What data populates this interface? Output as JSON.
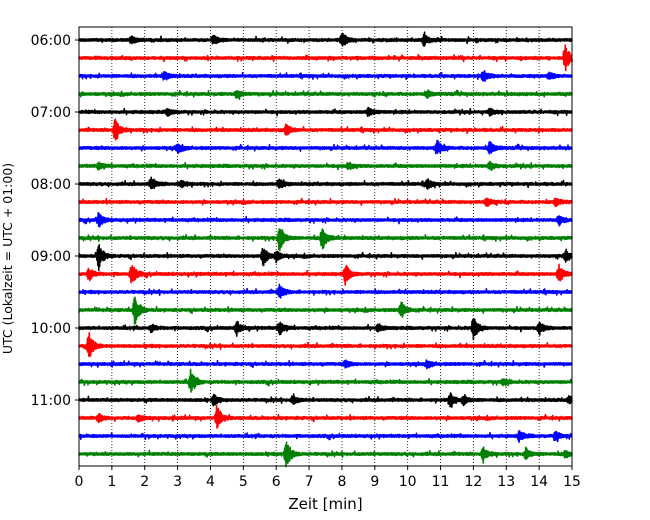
{
  "chart_data": {
    "type": "line",
    "xlabel": "Zeit  [min]",
    "ylabel": "UTC (Lokalzeit = UTC + 01:00)",
    "xlim": [
      0,
      15
    ],
    "x_ticks": [
      0,
      1,
      2,
      3,
      4,
      5,
      6,
      7,
      8,
      9,
      10,
      11,
      12,
      13,
      14,
      15
    ],
    "grid": "vertical dotted lines at each minute",
    "y_ticks": [
      {
        "label": "06:00",
        "row": 0
      },
      {
        "label": "07:00",
        "row": 4
      },
      {
        "label": "08:00",
        "row": 8
      },
      {
        "label": "09:00",
        "row": 12
      },
      {
        "label": "10:00",
        "row": 16
      },
      {
        "label": "11:00",
        "row": 20
      }
    ],
    "color_cycle": [
      "#000000",
      "#ff0000",
      "#0000ff",
      "#008000"
    ],
    "trace_interval_minutes": 15,
    "series": [
      {
        "start": "06:00",
        "color": "#000000",
        "events": [
          [
            1.6,
            0.5
          ],
          [
            4.1,
            0.5
          ],
          [
            8.0,
            0.9
          ],
          [
            10.5,
            0.6
          ]
        ]
      },
      {
        "start": "06:15",
        "color": "#ff0000",
        "events": [
          [
            14.8,
            1.5
          ]
        ]
      },
      {
        "start": "06:30",
        "color": "#0000ff",
        "events": [
          [
            2.6,
            0.5
          ],
          [
            12.3,
            0.7
          ],
          [
            14.3,
            0.5
          ]
        ]
      },
      {
        "start": "06:45",
        "color": "#008000",
        "events": [
          [
            4.8,
            0.5
          ],
          [
            10.6,
            0.4
          ]
        ]
      },
      {
        "start": "07:00",
        "color": "#000000",
        "events": [
          [
            2.7,
            0.4
          ],
          [
            8.8,
            0.5
          ],
          [
            12.5,
            0.4
          ]
        ]
      },
      {
        "start": "07:15",
        "color": "#ff0000",
        "events": [
          [
            1.1,
            1.5
          ],
          [
            6.3,
            0.6
          ]
        ]
      },
      {
        "start": "07:30",
        "color": "#0000ff",
        "events": [
          [
            3.0,
            0.5
          ],
          [
            10.9,
            0.8
          ],
          [
            12.5,
            0.8
          ]
        ]
      },
      {
        "start": "07:45",
        "color": "#008000",
        "events": [
          [
            0.6,
            0.4
          ],
          [
            8.2,
            0.4
          ],
          [
            12.5,
            0.5
          ]
        ]
      },
      {
        "start": "08:00",
        "color": "#000000",
        "events": [
          [
            2.2,
            0.7
          ],
          [
            3.1,
            0.5
          ],
          [
            6.1,
            0.5
          ],
          [
            10.6,
            0.5
          ]
        ]
      },
      {
        "start": "08:15",
        "color": "#ff0000",
        "events": [
          [
            12.4,
            0.5
          ],
          [
            14.5,
            0.5
          ]
        ]
      },
      {
        "start": "08:30",
        "color": "#0000ff",
        "events": [
          [
            0.6,
            0.8
          ],
          [
            14.6,
            0.6
          ]
        ]
      },
      {
        "start": "08:45",
        "color": "#008000",
        "events": [
          [
            6.1,
            1.5
          ],
          [
            7.4,
            1.3
          ]
        ]
      },
      {
        "start": "09:00",
        "color": "#000000",
        "events": [
          [
            0.6,
            1.5
          ],
          [
            5.6,
            1.1
          ],
          [
            6.0,
            0.6
          ],
          [
            14.8,
            0.6
          ]
        ]
      },
      {
        "start": "09:15",
        "color": "#ff0000",
        "events": [
          [
            0.3,
            0.7
          ],
          [
            1.6,
            1.2
          ],
          [
            8.1,
            1.1
          ],
          [
            14.6,
            1.0
          ]
        ]
      },
      {
        "start": "09:30",
        "color": "#0000ff",
        "events": [
          [
            6.1,
            0.8
          ]
        ]
      },
      {
        "start": "09:45",
        "color": "#008000",
        "events": [
          [
            1.7,
            1.6
          ],
          [
            9.8,
            1.0
          ]
        ]
      },
      {
        "start": "10:00",
        "color": "#000000",
        "events": [
          [
            2.2,
            0.4
          ],
          [
            4.8,
            0.8
          ],
          [
            6.1,
            0.8
          ],
          [
            9.1,
            0.4
          ],
          [
            12.0,
            1.4
          ],
          [
            14.0,
            0.7
          ]
        ]
      },
      {
        "start": "10:15",
        "color": "#ff0000",
        "events": [
          [
            0.3,
            1.5
          ]
        ]
      },
      {
        "start": "10:30",
        "color": "#0000ff",
        "events": [
          [
            8.1,
            0.4
          ],
          [
            10.6,
            0.4
          ]
        ]
      },
      {
        "start": "10:45",
        "color": "#008000",
        "events": [
          [
            3.4,
            1.3
          ],
          [
            12.9,
            0.4
          ]
        ]
      },
      {
        "start": "11:00",
        "color": "#000000",
        "events": [
          [
            4.1,
            0.6
          ],
          [
            6.5,
            0.5
          ],
          [
            11.3,
            0.8
          ],
          [
            11.7,
            0.5
          ],
          [
            14.9,
            0.4
          ]
        ]
      },
      {
        "start": "11:15",
        "color": "#ff0000",
        "events": [
          [
            0.6,
            0.4
          ],
          [
            1.8,
            0.4
          ],
          [
            4.2,
            1.4
          ]
        ]
      },
      {
        "start": "11:30",
        "color": "#0000ff",
        "events": [
          [
            13.4,
            0.6
          ],
          [
            14.5,
            0.5
          ]
        ]
      },
      {
        "start": "11:45",
        "color": "#008000",
        "events": [
          [
            6.3,
            1.7
          ],
          [
            12.3,
            0.9
          ],
          [
            13.6,
            0.6
          ],
          [
            14.8,
            0.4
          ]
        ]
      }
    ]
  }
}
